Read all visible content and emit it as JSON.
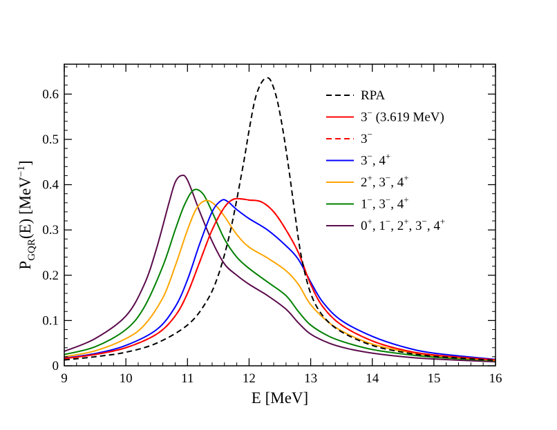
{
  "chart_data": {
    "type": "line",
    "xlabel": "E [MeV]",
    "ylabel": {
      "main": "P",
      "sub": "GQR",
      "rest": "(E) [MeV",
      "sup": "−1",
      "close": "]"
    },
    "xlim": [
      9,
      16
    ],
    "ylim": [
      0,
      0.666
    ],
    "xticks": [
      9,
      10,
      11,
      12,
      13,
      14,
      15,
      16
    ],
    "yticks": [
      0,
      0.1,
      0.2,
      0.3,
      0.4,
      0.5,
      0.6
    ],
    "ytick_labels": [
      "0",
      "0.1",
      "0.2",
      "0.3",
      "0.4",
      "0.5",
      "0.6"
    ],
    "legend_position": "top-right",
    "series": [
      {
        "name": "RPA",
        "legend": [
          [
            "RPA",
            ""
          ]
        ],
        "color": "#000000",
        "dash": true,
        "x": [
          9.0,
          9.5,
          10.0,
          10.5,
          11.0,
          11.3,
          11.5,
          11.7,
          11.9,
          12.0,
          12.1,
          12.2,
          12.28,
          12.35,
          12.45,
          12.55,
          12.65,
          12.75,
          12.85,
          13.0,
          13.2,
          13.5,
          14.0,
          14.5,
          15.0,
          16.0
        ],
        "y": [
          0.013,
          0.02,
          0.03,
          0.05,
          0.09,
          0.14,
          0.2,
          0.3,
          0.44,
          0.52,
          0.59,
          0.625,
          0.635,
          0.63,
          0.59,
          0.52,
          0.43,
          0.33,
          0.24,
          0.16,
          0.11,
          0.075,
          0.045,
          0.03,
          0.021,
          0.012
        ]
      },
      {
        "name": "3− (3.619 MeV)",
        "legend": [
          [
            "3",
            "−"
          ],
          [
            " (3.619 MeV)",
            ""
          ]
        ],
        "color": "#ff0000",
        "dash": false,
        "x": [
          9.0,
          9.5,
          10.0,
          10.5,
          10.8,
          11.0,
          11.2,
          11.4,
          11.6,
          11.75,
          11.9,
          12.0,
          12.2,
          12.4,
          12.6,
          12.8,
          13.0,
          13.2,
          13.5,
          14.0,
          14.5,
          15.0,
          16.0
        ],
        "y": [
          0.016,
          0.025,
          0.04,
          0.07,
          0.11,
          0.16,
          0.23,
          0.3,
          0.35,
          0.368,
          0.368,
          0.366,
          0.362,
          0.34,
          0.3,
          0.25,
          0.18,
          0.13,
          0.09,
          0.055,
          0.035,
          0.024,
          0.013
        ]
      },
      {
        "name": "3−",
        "legend": [
          [
            "3",
            "−"
          ]
        ],
        "color": "#ff0000",
        "dash": true,
        "x": [
          9.0,
          9.5,
          10.0,
          10.5,
          10.8,
          11.0,
          11.2,
          11.4,
          11.6,
          11.75,
          11.9,
          12.0,
          12.2,
          12.4,
          12.6,
          12.8,
          13.0,
          13.2,
          13.5,
          14.0,
          14.5,
          15.0,
          16.0
        ],
        "y": [
          0.016,
          0.025,
          0.04,
          0.07,
          0.11,
          0.16,
          0.23,
          0.3,
          0.35,
          0.368,
          0.368,
          0.366,
          0.362,
          0.34,
          0.3,
          0.25,
          0.18,
          0.13,
          0.09,
          0.055,
          0.035,
          0.024,
          0.013
        ]
      },
      {
        "name": "3−, 4+",
        "legend": [
          [
            "3",
            "−"
          ],
          [
            ", 4",
            "+"
          ]
        ],
        "color": "#0000ff",
        "dash": false,
        "x": [
          9.0,
          9.5,
          10.0,
          10.5,
          10.8,
          11.0,
          11.2,
          11.4,
          11.55,
          11.65,
          11.8,
          12.0,
          12.3,
          12.6,
          12.8,
          13.0,
          13.2,
          13.5,
          14.0,
          14.5,
          15.0,
          16.0
        ],
        "y": [
          0.017,
          0.027,
          0.045,
          0.08,
          0.13,
          0.19,
          0.27,
          0.34,
          0.365,
          0.363,
          0.345,
          0.325,
          0.3,
          0.265,
          0.235,
          0.185,
          0.14,
          0.1,
          0.065,
          0.042,
          0.028,
          0.014
        ]
      },
      {
        "name": "2+, 3−, 4+",
        "legend": [
          [
            "2",
            "+"
          ],
          [
            ", 3",
            "−"
          ],
          [
            ", 4",
            "+"
          ]
        ],
        "color": "#ffa500",
        "dash": false,
        "x": [
          9.0,
          9.5,
          10.0,
          10.3,
          10.6,
          10.8,
          11.0,
          11.15,
          11.3,
          11.45,
          11.6,
          11.8,
          12.0,
          12.3,
          12.6,
          12.8,
          13.0,
          13.3,
          13.6,
          14.0,
          14.5,
          15.0,
          16.0
        ],
        "y": [
          0.02,
          0.033,
          0.06,
          0.09,
          0.15,
          0.22,
          0.3,
          0.348,
          0.365,
          0.355,
          0.33,
          0.29,
          0.262,
          0.238,
          0.21,
          0.18,
          0.135,
          0.095,
          0.07,
          0.048,
          0.032,
          0.022,
          0.012
        ]
      },
      {
        "name": "1−, 3−, 4+",
        "legend": [
          [
            "1",
            "−"
          ],
          [
            ", 3",
            "−"
          ],
          [
            ", 4",
            "+"
          ]
        ],
        "color": "#008000",
        "dash": false,
        "x": [
          9.0,
          9.5,
          10.0,
          10.3,
          10.6,
          10.8,
          10.95,
          11.1,
          11.25,
          11.4,
          11.6,
          11.8,
          12.0,
          12.3,
          12.6,
          12.8,
          13.0,
          13.3,
          13.6,
          14.0,
          14.5,
          15.0,
          16.0
        ],
        "y": [
          0.025,
          0.042,
          0.08,
          0.13,
          0.22,
          0.3,
          0.355,
          0.388,
          0.38,
          0.34,
          0.28,
          0.24,
          0.215,
          0.185,
          0.155,
          0.12,
          0.09,
          0.065,
          0.05,
          0.036,
          0.026,
          0.019,
          0.011
        ]
      },
      {
        "name": "0+, 1−, 2+, 3−, 4+",
        "legend": [
          [
            "0",
            "+"
          ],
          [
            ", 1",
            "−"
          ],
          [
            ", 2",
            "+"
          ],
          [
            ", 3",
            "−"
          ],
          [
            ", 4",
            "+"
          ]
        ],
        "color": "#5a0a4a",
        "dash": false,
        "x": [
          9.0,
          9.5,
          10.0,
          10.3,
          10.5,
          10.7,
          10.8,
          10.9,
          11.0,
          11.2,
          11.4,
          11.6,
          11.8,
          12.0,
          12.3,
          12.6,
          12.8,
          13.0,
          13.3,
          13.6,
          14.0,
          14.5,
          15.0,
          16.0
        ],
        "y": [
          0.032,
          0.06,
          0.11,
          0.18,
          0.26,
          0.36,
          0.405,
          0.42,
          0.41,
          0.34,
          0.275,
          0.225,
          0.2,
          0.18,
          0.155,
          0.125,
          0.095,
          0.07,
          0.05,
          0.038,
          0.028,
          0.02,
          0.015,
          0.009
        ]
      }
    ]
  }
}
